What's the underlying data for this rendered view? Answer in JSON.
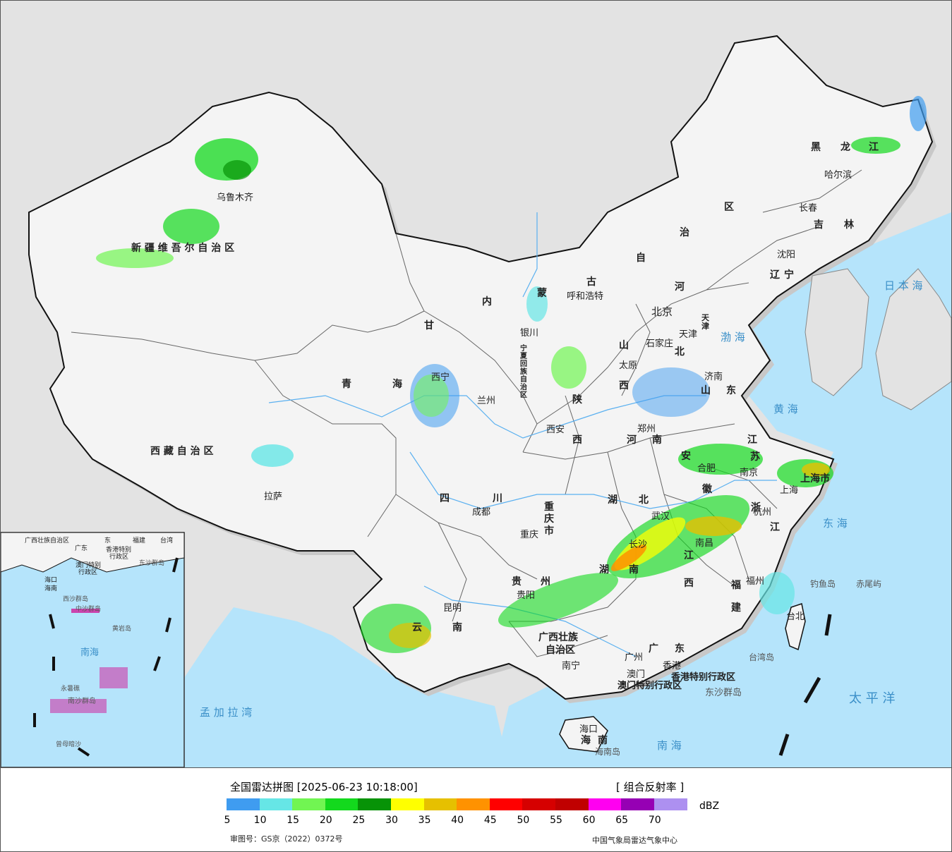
{
  "legend": {
    "title": "全国雷达拼图 [2025-06-23 10:18:00]",
    "product": "[ 组合反射率 ]",
    "unit": "dBZ",
    "colors": [
      "#3f9cf0",
      "#66e6e6",
      "#71f552",
      "#13d91d",
      "#079307",
      "#ffff00",
      "#e6c000",
      "#ff9200",
      "#ff0000",
      "#d60000",
      "#c00000",
      "#ff00f0",
      "#9600b4",
      "#ad90f0"
    ],
    "ticks": [
      "5",
      "10",
      "15",
      "20",
      "25",
      "30",
      "35",
      "40",
      "45",
      "50",
      "55",
      "60",
      "65",
      "70"
    ],
    "approval_no": "审图号：GS京（2022）0372号",
    "agency": "中国气象局雷达气象中心"
  },
  "map": {
    "region_labels": [
      "新 疆 维 吾 尔 自 治 区",
      "西 藏 自 治 区",
      "青",
      "海",
      "甘",
      "内",
      "蒙",
      "古",
      "自",
      "治",
      "区",
      "黑",
      "龙",
      "江",
      "吉",
      "林",
      "辽",
      "宁",
      "河",
      "北",
      "山",
      "西",
      "陕",
      "西",
      "四",
      "川",
      "宁夏回族自治区",
      "重庆市",
      "湖",
      "北",
      "湖",
      "南",
      "江",
      "西",
      "浙",
      "江",
      "福",
      "建",
      "广",
      "东",
      "广西壮族",
      "自治区",
      "云",
      "南",
      "贵",
      "州",
      "安",
      "徽",
      "江",
      "苏",
      "上海市",
      "山",
      "东",
      "河",
      "南",
      "海",
      "南",
      "天津"
    ],
    "cities": [
      "乌鲁木齐",
      "拉萨",
      "西宁",
      "兰州",
      "银川",
      "呼和浩特",
      "北京",
      "天津",
      "石家庄",
      "太原",
      "济南",
      "郑州",
      "西安",
      "成都",
      "重庆",
      "武汉",
      "合肥",
      "南京",
      "上海",
      "杭州",
      "长沙",
      "南昌",
      "福州",
      "贵阳",
      "昆明",
      "南宁",
      "广州",
      "澳门",
      "香港",
      "海口",
      "沈阳",
      "长春",
      "哈尔滨",
      "台北"
    ],
    "map_extra_labels": [
      "香港特别行政区",
      "澳门特别行政区",
      "东沙群岛",
      "台湾岛",
      "海南岛",
      "钓鱼岛",
      "赤尾屿"
    ],
    "sea_labels": [
      "日 本 海",
      "渤 海",
      "黄 海",
      "东 海",
      "南 海",
      "太 平 洋",
      "孟 加 拉 湾"
    ],
    "inset_labels": [
      "广西壮族自治区",
      "东",
      "广东",
      "福建",
      "台湾",
      "香港特别",
      "行政区",
      "澳门特别",
      "行政区",
      "海口",
      "东沙群岛",
      "海南",
      "西沙群岛",
      "中沙群岛",
      "黄岩岛",
      "南海",
      "永暑礁",
      "南沙群岛",
      "曾母暗沙"
    ]
  }
}
